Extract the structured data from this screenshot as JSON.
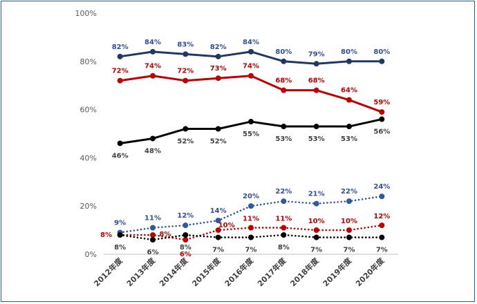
{
  "chart_data": {
    "type": "line",
    "title": "",
    "xlabel": "",
    "ylabel": "",
    "categories": [
      "2012年度",
      "2013年度",
      "2014年度",
      "2015年度",
      "2016年度",
      "2017年度",
      "2018年度",
      "2019年度",
      "2020年度"
    ],
    "yticks": [
      "0%",
      "20%",
      "40%",
      "60%",
      "80%",
      "100%"
    ],
    "ylim": [
      0,
      100
    ],
    "grid": false,
    "legend": "none",
    "series": [
      {
        "color": "#1f3864",
        "style": "solid",
        "values": [
          82,
          84,
          83,
          82,
          84,
          80,
          79,
          80,
          80
        ],
        "labels": [
          "82%",
          "84%",
          "83%",
          "82%",
          "84%",
          "80%",
          "79%",
          "80%",
          "80%"
        ],
        "label_position": "above",
        "label_color": "#2e4f9e"
      },
      {
        "color": "#c00000",
        "style": "solid",
        "values": [
          72,
          74,
          72,
          73,
          74,
          68,
          68,
          64,
          59
        ],
        "labels": [
          "72%",
          "74%",
          "72%",
          "73%",
          "74%",
          "68%",
          "68%",
          "64%",
          "59%"
        ],
        "label_position": "above",
        "label_color": "#c00000"
      },
      {
        "color": "#000000",
        "style": "solid",
        "values": [
          46,
          48,
          52,
          52,
          55,
          53,
          53,
          53,
          56
        ],
        "labels": [
          "46%",
          "48%",
          "52%",
          "52%",
          "55%",
          "53%",
          "53%",
          "53%",
          "56%"
        ],
        "label_position": "below",
        "label_color": "#404040"
      },
      {
        "color": "#2e57a4",
        "style": "dotted",
        "values": [
          9,
          11,
          12,
          14,
          20,
          22,
          21,
          22,
          24
        ],
        "labels": [
          "9%",
          "11%",
          "12%",
          "14%",
          "20%",
          "22%",
          "21%",
          "22%",
          "24%"
        ],
        "label_position": "above",
        "label_color": "#2e4f9e"
      },
      {
        "color": "#c00000",
        "style": "dotted",
        "values": [
          8,
          8,
          6,
          10,
          11,
          11,
          10,
          10,
          12
        ],
        "labels": [
          "8%",
          "8%",
          "6%",
          "10%",
          "11%",
          "11%",
          "10%",
          "10%",
          "12%"
        ],
        "label_position": "mixed",
        "label_color": "#c00000"
      },
      {
        "color": "#000000",
        "style": "dotted",
        "values": [
          8,
          6,
          8,
          7,
          7,
          8,
          7,
          7,
          7
        ],
        "labels": [
          "8%",
          "6%",
          "8%",
          "7%",
          "7%",
          "8%",
          "7%",
          "7%",
          "7%"
        ],
        "label_position": "below",
        "label_color": "#404040"
      }
    ]
  }
}
